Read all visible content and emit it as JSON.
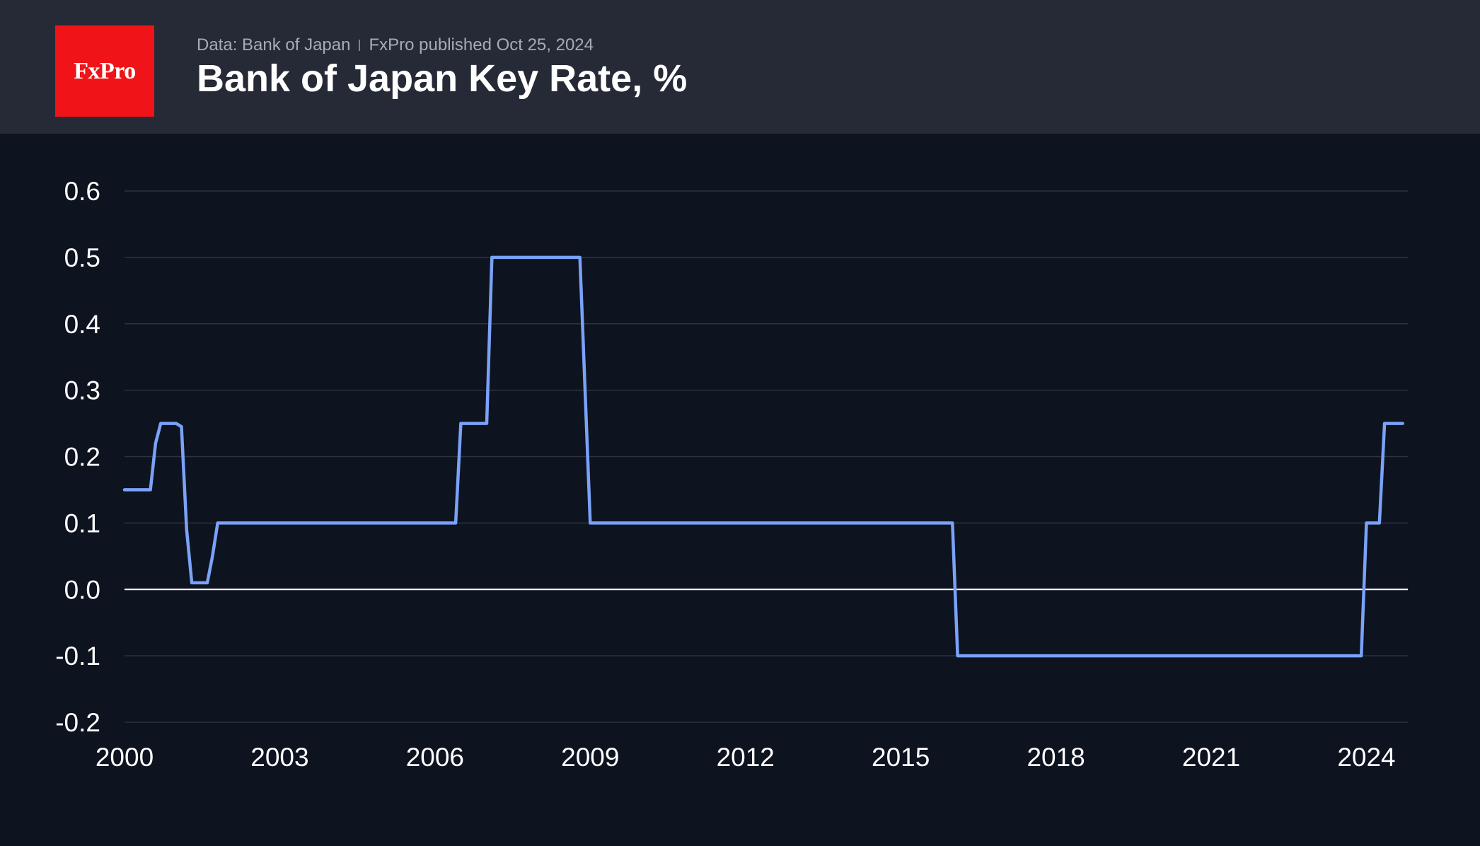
{
  "header": {
    "logo_text": "FxPro",
    "source": "Data: Bank of Japan",
    "published": "FxPro published Oct 25, 2024",
    "title": "Bank of Japan Key Rate, %"
  },
  "colors": {
    "background": "#0e1320",
    "header_bg": "#262a36",
    "logo_bg": "#f01418",
    "line": "#7aa2f7",
    "grid": "#2c3342",
    "zero_line": "#ffffff",
    "tick_text": "#ffffff"
  },
  "chart_data": {
    "type": "line",
    "title": "Bank of Japan Key Rate, %",
    "xlabel": "",
    "ylabel": "",
    "xlim": [
      2000.0,
      2024.8
    ],
    "ylim": [
      -0.2,
      0.6
    ],
    "x_ticks": [
      2000,
      2003,
      2006,
      2009,
      2012,
      2015,
      2018,
      2021,
      2024
    ],
    "x_tick_labels": [
      "2000",
      "2003",
      "2006",
      "2009",
      "2012",
      "2015",
      "2018",
      "2021",
      "2024"
    ],
    "y_ticks": [
      -0.2,
      -0.1,
      0.0,
      0.1,
      0.2,
      0.3,
      0.4,
      0.5,
      0.6
    ],
    "y_tick_labels": [
      "-0.2",
      "-0.1",
      "0.0",
      "0.1",
      "0.2",
      "0.3",
      "0.4",
      "0.5",
      "0.6"
    ],
    "grid": true,
    "legend": "none",
    "series": [
      {
        "points": [
          [
            2000.0,
            0.15
          ],
          [
            2000.5,
            0.15
          ],
          [
            2000.6,
            0.22
          ],
          [
            2000.7,
            0.25
          ],
          [
            2001.0,
            0.25
          ],
          [
            2001.1,
            0.245
          ],
          [
            2001.2,
            0.09
          ],
          [
            2001.3,
            0.01
          ],
          [
            2001.6,
            0.01
          ],
          [
            2001.7,
            0.05
          ],
          [
            2001.8,
            0.1
          ],
          [
            2006.4,
            0.1
          ],
          [
            2006.5,
            0.25
          ],
          [
            2007.0,
            0.25
          ],
          [
            2007.1,
            0.5
          ],
          [
            2008.8,
            0.5
          ],
          [
            2008.9,
            0.3
          ],
          [
            2009.0,
            0.1
          ],
          [
            2016.0,
            0.1
          ],
          [
            2016.1,
            -0.1
          ],
          [
            2023.9,
            -0.1
          ],
          [
            2024.0,
            0.1
          ],
          [
            2024.25,
            0.1
          ],
          [
            2024.35,
            0.25
          ],
          [
            2024.7,
            0.25
          ]
        ]
      }
    ]
  }
}
